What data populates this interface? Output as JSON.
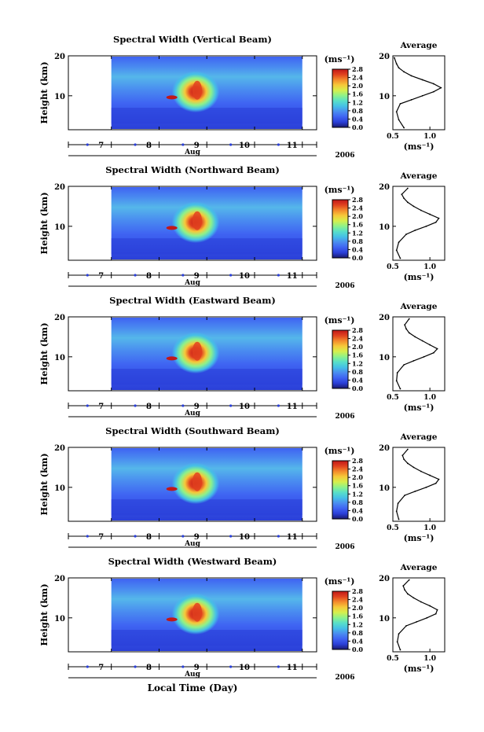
{
  "figure": {
    "xlabel": "Local Time (Day)",
    "month": "Aug",
    "year": "2006",
    "x_ticks": [
      "7",
      "8",
      "9",
      "10",
      "11"
    ],
    "colorbar_unit": "(ms⁻¹)",
    "colorbar_ticks": [
      "0.0",
      "0.4",
      "0.8",
      "1.2",
      "1.6",
      "2.0",
      "2.4",
      "2.8"
    ],
    "colormap": [
      "#1a1a6e",
      "#2a3fd8",
      "#3f63f2",
      "#4a8df0",
      "#45c0e6",
      "#58e0c8",
      "#8ef28a",
      "#d6ef4c",
      "#f6c93a",
      "#f38a2c",
      "#e0411f",
      "#c01818"
    ],
    "profile_title": "Average",
    "profile_xlabel": "(ms⁻¹)"
  },
  "chart_data": [
    {
      "type": "heatmap",
      "title": "Spectral Width (Vertical Beam)",
      "ylabel": "Height (km)",
      "y_ticks": [
        "10",
        "20"
      ],
      "ylim": [
        1.5,
        20
      ],
      "xlim": [
        6.1,
        11.3
      ],
      "data_xlim": [
        7.0,
        11.0
      ],
      "clim": [
        0.0,
        2.8
      ],
      "summary": {
        "background": 0.5,
        "peak_region": {
          "x": [
            8.3,
            9.1
          ],
          "y": [
            7,
            15
          ],
          "value": 2.5
        }
      },
      "profile": {
        "title": "Average",
        "x_ticks": [
          "0.5",
          "1.0"
        ],
        "y_ticks": [
          "10",
          "20"
        ],
        "xlim": [
          0.5,
          1.2
        ],
        "ylim": [
          1.5,
          20
        ],
        "heights": [
          2,
          4,
          6,
          8,
          9,
          10,
          11,
          12,
          13,
          14,
          15,
          16,
          17,
          18,
          19.5
        ],
        "values": [
          0.65,
          0.58,
          0.55,
          0.6,
          0.75,
          0.9,
          1.05,
          1.15,
          1.05,
          0.9,
          0.75,
          0.65,
          0.58,
          0.55,
          0.52
        ]
      }
    },
    {
      "type": "heatmap",
      "title": "Spectral Width (Northward Beam)",
      "ylabel": "Height (km)",
      "y_ticks": [
        "10",
        "20"
      ],
      "ylim": [
        1.5,
        20
      ],
      "xlim": [
        6.1,
        11.3
      ],
      "data_xlim": [
        7.0,
        11.0
      ],
      "clim": [
        0.0,
        2.8
      ],
      "summary": {
        "background": 0.5,
        "peak_region": {
          "x": [
            8.3,
            9.1
          ],
          "y": [
            7,
            15
          ],
          "value": 2.5
        }
      },
      "profile": {
        "title": "Average",
        "x_ticks": [
          "0.5",
          "1.0"
        ],
        "y_ticks": [
          "10",
          "20"
        ],
        "xlim": [
          0.5,
          1.2
        ],
        "ylim": [
          1.5,
          20
        ],
        "heights": [
          2,
          4,
          6,
          8,
          9,
          10,
          11,
          12,
          13,
          14,
          15,
          16,
          17,
          18,
          19.5
        ],
        "values": [
          0.6,
          0.55,
          0.58,
          0.68,
          0.8,
          0.95,
          1.08,
          1.12,
          1.0,
          0.88,
          0.78,
          0.7,
          0.65,
          0.62,
          0.7
        ]
      }
    },
    {
      "type": "heatmap",
      "title": "Spectral Width (Eastward Beam)",
      "ylabel": "Height (km)",
      "y_ticks": [
        "10",
        "20"
      ],
      "ylim": [
        1.5,
        20
      ],
      "xlim": [
        6.1,
        11.3
      ],
      "data_xlim": [
        7.0,
        11.0
      ],
      "clim": [
        0.0,
        2.8
      ],
      "summary": {
        "background": 0.5,
        "peak_region": {
          "x": [
            8.3,
            9.1
          ],
          "y": [
            7,
            15
          ],
          "value": 2.5
        }
      },
      "profile": {
        "title": "Average",
        "x_ticks": [
          "0.5",
          "1.0"
        ],
        "y_ticks": [
          "10",
          "20"
        ],
        "xlim": [
          0.5,
          1.2
        ],
        "ylim": [
          1.5,
          20
        ],
        "heights": [
          2,
          4,
          6,
          8,
          9,
          10,
          11,
          12,
          13,
          14,
          15,
          16,
          17,
          18,
          19.5
        ],
        "values": [
          0.6,
          0.55,
          0.56,
          0.65,
          0.78,
          0.92,
          1.05,
          1.1,
          1.0,
          0.9,
          0.8,
          0.72,
          0.68,
          0.66,
          0.72
        ]
      }
    },
    {
      "type": "heatmap",
      "title": "Spectral Width (Southward Beam)",
      "ylabel": "Height (km)",
      "y_ticks": [
        "10",
        "20"
      ],
      "ylim": [
        1.5,
        20
      ],
      "xlim": [
        6.1,
        11.3
      ],
      "data_xlim": [
        7.0,
        11.0
      ],
      "clim": [
        0.0,
        2.8
      ],
      "summary": {
        "background": 0.5,
        "peak_region": {
          "x": [
            8.3,
            9.1
          ],
          "y": [
            7,
            15
          ],
          "value": 2.5
        }
      },
      "profile": {
        "title": "Average",
        "x_ticks": [
          "0.5",
          "1.0"
        ],
        "y_ticks": [
          "10",
          "20"
        ],
        "xlim": [
          0.5,
          1.2
        ],
        "ylim": [
          1.5,
          20
        ],
        "heights": [
          2,
          4,
          6,
          8,
          9,
          10,
          11,
          12,
          13,
          14,
          15,
          16,
          17,
          18,
          19.5
        ],
        "values": [
          0.58,
          0.55,
          0.57,
          0.66,
          0.8,
          0.95,
          1.08,
          1.12,
          1.0,
          0.88,
          0.78,
          0.7,
          0.65,
          0.63,
          0.7
        ]
      }
    },
    {
      "type": "heatmap",
      "title": "Spectral Width (Westward Beam)",
      "ylabel": "Height (km)",
      "y_ticks": [
        "10",
        "20"
      ],
      "ylim": [
        1.5,
        20
      ],
      "xlim": [
        6.1,
        11.3
      ],
      "data_xlim": [
        7.0,
        11.0
      ],
      "clim": [
        0.0,
        2.8
      ],
      "summary": {
        "background": 0.5,
        "peak_region": {
          "x": [
            8.3,
            9.1
          ],
          "y": [
            7,
            15
          ],
          "value": 2.5
        }
      },
      "profile": {
        "title": "Average",
        "x_ticks": [
          "0.5",
          "1.0"
        ],
        "y_ticks": [
          "10",
          "20"
        ],
        "xlim": [
          0.5,
          1.2
        ],
        "ylim": [
          1.5,
          20
        ],
        "heights": [
          2,
          4,
          6,
          8,
          9,
          10,
          11,
          12,
          13,
          14,
          15,
          16,
          17,
          18,
          19.5
        ],
        "values": [
          0.6,
          0.56,
          0.58,
          0.68,
          0.82,
          0.96,
          1.08,
          1.1,
          1.0,
          0.88,
          0.78,
          0.7,
          0.66,
          0.64,
          0.72
        ]
      }
    }
  ]
}
